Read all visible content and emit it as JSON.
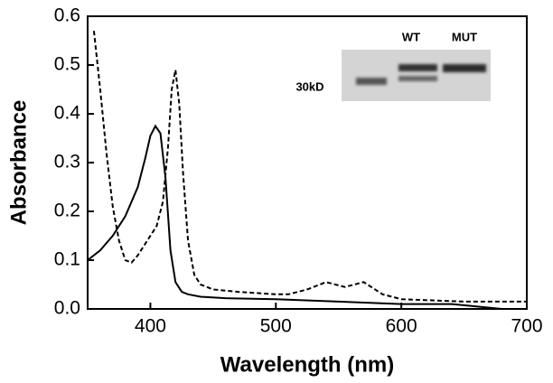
{
  "chart_data": {
    "type": "line",
    "xlabel": "Wavelength (nm)",
    "ylabel": "Absorbance",
    "xlim": [
      350,
      700
    ],
    "ylim": [
      0,
      0.6
    ],
    "xticks": [
      400,
      500,
      600,
      700
    ],
    "yticks": [
      {
        "value": 0,
        "label": "0.0"
      },
      0.1,
      0.2,
      0.3,
      0.4,
      0.5,
      0.6
    ],
    "annotations": [
      "WT",
      "MUT",
      "30kD"
    ],
    "series": [
      {
        "color": "#000000",
        "dash": "solid",
        "x": [
          350,
          360,
          370,
          380,
          390,
          396,
          400,
          404,
          408,
          412,
          416,
          420,
          425,
          430,
          440,
          460,
          500,
          550,
          600,
          640,
          680,
          700
        ],
        "values": [
          0.1,
          0.12,
          0.15,
          0.19,
          0.25,
          0.31,
          0.355,
          0.375,
          0.36,
          0.27,
          0.12,
          0.055,
          0.035,
          0.03,
          0.025,
          0.022,
          0.02,
          0.015,
          0.01,
          0.01,
          0.0,
          0.0
        ]
      },
      {
        "color": "#000000",
        "dash": "dashed",
        "x": [
          355,
          360,
          365,
          370,
          375,
          380,
          385,
          390,
          395,
          400,
          405,
          410,
          414,
          417,
          420,
          423,
          426,
          430,
          435,
          440,
          450,
          470,
          500,
          510,
          525,
          540,
          555,
          570,
          585,
          600,
          650,
          700
        ],
        "values": [
          0.57,
          0.45,
          0.32,
          0.21,
          0.14,
          0.1,
          0.095,
          0.11,
          0.13,
          0.15,
          0.17,
          0.22,
          0.33,
          0.45,
          0.49,
          0.42,
          0.28,
          0.14,
          0.07,
          0.05,
          0.04,
          0.035,
          0.03,
          0.03,
          0.04,
          0.055,
          0.045,
          0.055,
          0.03,
          0.02,
          0.015,
          0.015
        ]
      }
    ]
  }
}
